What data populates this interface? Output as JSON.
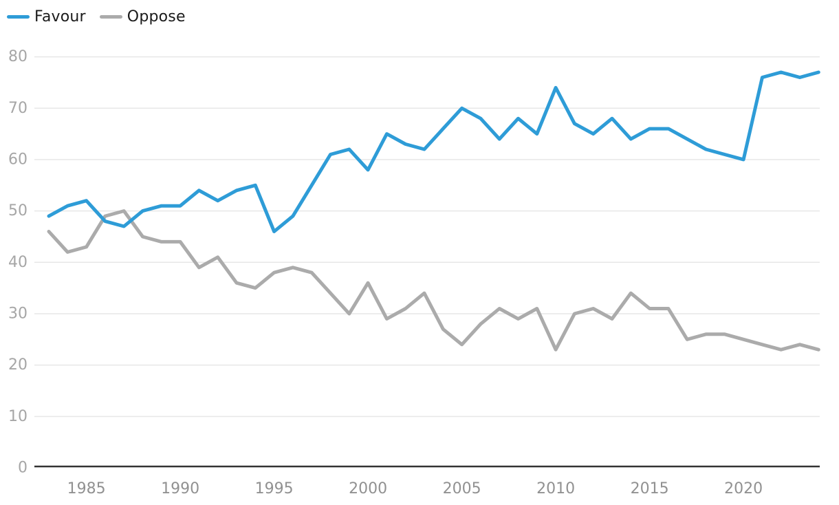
{
  "chart_data": {
    "type": "line",
    "title": "",
    "xlabel": "",
    "ylabel": "",
    "x": [
      1983,
      1984,
      1985,
      1986,
      1987,
      1988,
      1989,
      1990,
      1991,
      1992,
      1993,
      1994,
      1995,
      1996,
      1997,
      1998,
      1999,
      2000,
      2001,
      2002,
      2003,
      2004,
      2005,
      2006,
      2007,
      2008,
      2009,
      2010,
      2011,
      2012,
      2013,
      2014,
      2015,
      2016,
      2017,
      2018,
      2019,
      2020,
      2021,
      2022,
      2023,
      2024
    ],
    "series": [
      {
        "name": "Favour",
        "color": "#2e9cd7",
        "values": [
          49,
          51,
          52,
          48,
          47,
          50,
          51,
          51,
          54,
          52,
          54,
          55,
          46,
          49,
          55,
          61,
          62,
          58,
          65,
          63,
          62,
          66,
          70,
          68,
          64,
          68,
          65,
          74,
          67,
          65,
          68,
          64,
          66,
          66,
          64,
          62,
          61,
          60,
          76,
          77,
          76,
          77
        ]
      },
      {
        "name": "Oppose",
        "color": "#ababab",
        "values": [
          46,
          42,
          43,
          49,
          50,
          45,
          44,
          44,
          39,
          41,
          36,
          35,
          38,
          39,
          38,
          34,
          30,
          36,
          29,
          31,
          34,
          27,
          24,
          28,
          31,
          29,
          31,
          23,
          30,
          31,
          29,
          34,
          31,
          31,
          25,
          26,
          26,
          25,
          24,
          23,
          24,
          23
        ]
      }
    ],
    "ylim": [
      0,
      80
    ],
    "yticks": [
      0,
      10,
      20,
      30,
      40,
      50,
      60,
      70,
      80
    ],
    "xticks": [
      1985,
      1990,
      1995,
      2000,
      2005,
      2010,
      2015,
      2020
    ],
    "grid": true,
    "legend_position": "top-left"
  },
  "colors": {
    "background": "#ffffff",
    "gridline": "#e7e7e7",
    "axis_line": "#333333",
    "y_tick_label": "#a6a6a6",
    "x_tick_label": "#919191",
    "legend_text": "#1a1a1a"
  }
}
